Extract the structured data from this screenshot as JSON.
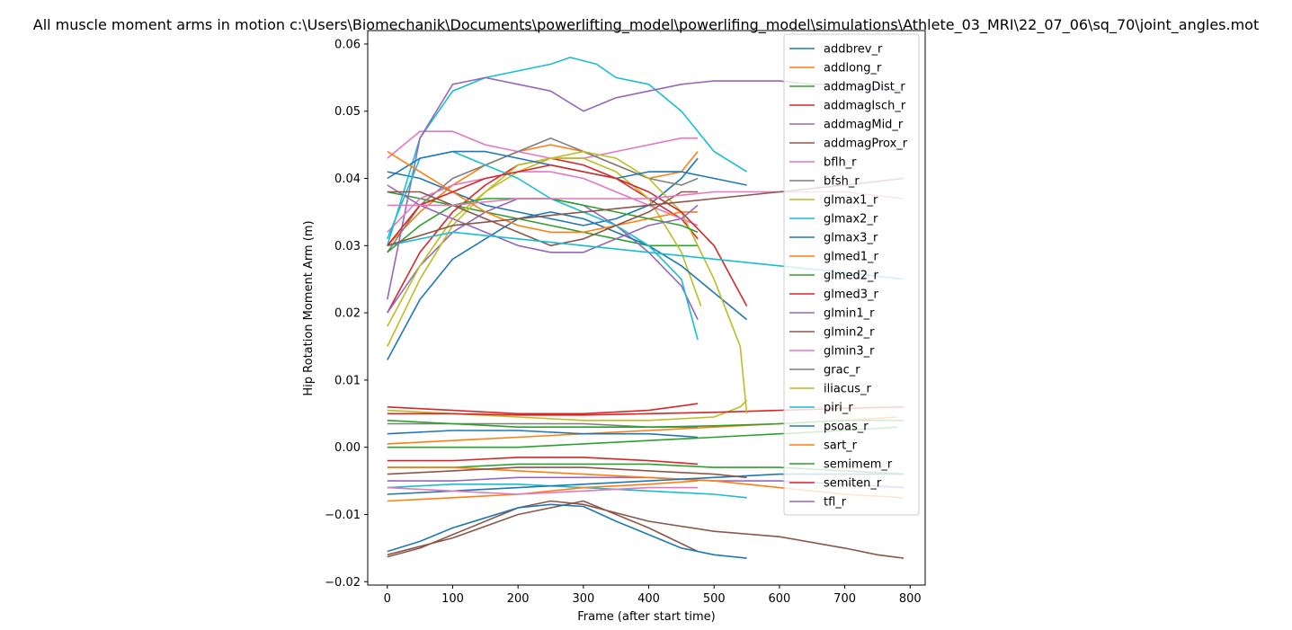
{
  "chart_data": {
    "type": "line",
    "title": "All muscle moment arms in motion c:\\Users\\Biomechanik\\Documents\\powerlifting_model\\powerlifing_model\\simulations\\Athlete_03_MRI\\22_07_06\\sq_70\\joint_angles.mot",
    "xlabel": "Frame (after start time)",
    "ylabel": "Hip Rotation Moment Arm (m)",
    "xlim": [
      -30,
      823
    ],
    "ylim": [
      -0.0205,
      0.062
    ],
    "xticks": [
      0,
      100,
      200,
      300,
      400,
      500,
      600,
      700,
      800
    ],
    "yticks": [
      -0.02,
      -0.01,
      0.0,
      0.01,
      0.02,
      0.03,
      0.04,
      0.05,
      0.06
    ],
    "ytick_labels": [
      "−0.02",
      "−0.01",
      "0.00",
      "0.01",
      "0.02",
      "0.03",
      "0.04",
      "0.05",
      "0.06"
    ],
    "grid": false,
    "legend_position": "top-right",
    "series": [
      {
        "name": "addbrev_r",
        "color": "#1f77b4",
        "x": [
          0,
          50,
          100,
          150,
          200,
          250,
          300,
          350,
          400,
          450,
          475
        ],
        "y": [
          0.041,
          0.04,
          0.038,
          0.036,
          0.035,
          0.034,
          0.033,
          0.034,
          0.036,
          0.04,
          0.043
        ]
      },
      {
        "name": "addlong_r",
        "color": "#ff7f0e",
        "x": [
          0,
          50,
          100,
          150,
          200,
          250,
          300,
          350,
          400,
          450,
          475
        ],
        "y": [
          0.03,
          0.035,
          0.039,
          0.042,
          0.044,
          0.045,
          0.044,
          0.042,
          0.04,
          0.041,
          0.044
        ]
      },
      {
        "name": "addmagDist_r",
        "color": "#2ca02c",
        "x": [
          0,
          50,
          100,
          150,
          200,
          250,
          300,
          350,
          400,
          450,
          475
        ],
        "y": [
          0.038,
          0.037,
          0.036,
          0.035,
          0.034,
          0.033,
          0.032,
          0.031,
          0.03,
          0.03,
          0.03
        ]
      },
      {
        "name": "addmagIsch_r",
        "color": "#d62728",
        "x": [
          0,
          50,
          100,
          150,
          200,
          250,
          300,
          350,
          400,
          450,
          475
        ],
        "y": [
          0.02,
          0.029,
          0.035,
          0.039,
          0.042,
          0.043,
          0.042,
          0.04,
          0.037,
          0.034,
          0.031
        ]
      },
      {
        "name": "addmagMid_r",
        "color": "#9467bd",
        "x": [
          0,
          50,
          100,
          150,
          200,
          250,
          300,
          350,
          400,
          450,
          475
        ],
        "y": [
          0.02,
          0.027,
          0.032,
          0.035,
          0.037,
          0.037,
          0.036,
          0.033,
          0.029,
          0.024,
          0.019
        ]
      },
      {
        "name": "addmagProx_r",
        "color": "#8c564b",
        "x": [
          0,
          50,
          100,
          150,
          200,
          250,
          300,
          400,
          500,
          600,
          700,
          750,
          790
        ],
        "y": [
          -0.0163,
          -0.015,
          -0.013,
          -0.011,
          -0.009,
          -0.008,
          -0.0085,
          -0.011,
          -0.0125,
          -0.0133,
          -0.015,
          -0.016,
          -0.0165
        ]
      },
      {
        "name": "bflh_r",
        "color": "#e377c2",
        "x": [
          0,
          50,
          100,
          150,
          200,
          250,
          300,
          350,
          400,
          450,
          475
        ],
        "y": [
          0.043,
          0.047,
          0.047,
          0.045,
          0.044,
          0.043,
          0.043,
          0.044,
          0.045,
          0.046,
          0.046
        ]
      },
      {
        "name": "bfsh_r",
        "color": "#7f7f7f",
        "x": [
          0,
          50,
          100,
          150,
          200,
          250,
          300,
          350,
          400,
          450,
          475
        ],
        "y": [
          0.029,
          0.036,
          0.04,
          0.042,
          0.044,
          0.046,
          0.044,
          0.042,
          0.04,
          0.039,
          0.04
        ]
      },
      {
        "name": "glmax1_r",
        "color": "#bcbd22",
        "x": [
          0,
          50,
          100,
          150,
          200,
          250,
          300,
          350,
          400,
          450,
          480
        ],
        "y": [
          0.018,
          0.027,
          0.034,
          0.038,
          0.041,
          0.043,
          0.043,
          0.041,
          0.037,
          0.029,
          0.021
        ]
      },
      {
        "name": "glmax2_r",
        "color": "#17becf",
        "x": [
          0,
          50,
          100,
          150,
          200,
          250,
          280,
          320,
          350,
          400,
          450,
          500,
          550
        ],
        "y": [
          0.03,
          0.046,
          0.053,
          0.055,
          0.056,
          0.057,
          0.058,
          0.057,
          0.055,
          0.054,
          0.05,
          0.044,
          0.041
        ]
      },
      {
        "name": "glmax3_r",
        "color": "#1f77b4",
        "x": [
          0,
          50,
          100,
          150,
          200,
          250,
          300,
          350,
          400,
          450,
          500,
          550
        ],
        "y": [
          0.013,
          0.022,
          0.028,
          0.031,
          0.034,
          0.035,
          0.034,
          0.032,
          0.03,
          0.027,
          0.023,
          0.019
        ]
      },
      {
        "name": "glmed1_r",
        "color": "#ff7f0e",
        "x": [
          0,
          100,
          200,
          300,
          400,
          500,
          600,
          700,
          780
        ],
        "y": [
          0.0005,
          0.001,
          0.0015,
          0.002,
          0.0025,
          0.003,
          0.0035,
          0.004,
          0.0045
        ]
      },
      {
        "name": "glmed2_r",
        "color": "#2ca02c",
        "x": [
          0,
          100,
          200,
          300,
          400,
          500,
          600,
          700,
          780
        ],
        "y": [
          0.0,
          0.0,
          0.0,
          0.0005,
          0.001,
          0.0015,
          0.002,
          0.0025,
          0.003
        ]
      },
      {
        "name": "glmed3_r",
        "color": "#d62728",
        "x": [
          0,
          100,
          200,
          300,
          400,
          475
        ],
        "y": [
          0.006,
          0.0055,
          0.005,
          0.005,
          0.0055,
          0.0065
        ]
      },
      {
        "name": "glmin1_r",
        "color": "#9467bd",
        "x": [
          0,
          50,
          100,
          150,
          200,
          250,
          300,
          350,
          400,
          450,
          500,
          550,
          600,
          650,
          700,
          750,
          790
        ],
        "y": [
          0.022,
          0.046,
          0.054,
          0.055,
          0.054,
          0.053,
          0.05,
          0.052,
          0.053,
          0.054,
          0.0545,
          0.0545,
          0.0545,
          0.054,
          0.054,
          0.0535,
          0.053
        ]
      },
      {
        "name": "glmin2_r",
        "color": "#8c564b",
        "x": [
          0,
          100,
          200,
          300,
          400,
          475
        ],
        "y": [
          -0.016,
          -0.0135,
          -0.01,
          -0.008,
          -0.012,
          -0.0155
        ]
      },
      {
        "name": "glmin3_r",
        "color": "#e377c2",
        "x": [
          0,
          50,
          100,
          150,
          200,
          250,
          300,
          350,
          400,
          450,
          475
        ],
        "y": [
          0.032,
          0.037,
          0.039,
          0.04,
          0.041,
          0.041,
          0.04,
          0.038,
          0.036,
          0.034,
          0.033
        ]
      },
      {
        "name": "grac_r",
        "color": "#7f7f7f",
        "x": [
          0,
          100,
          200,
          300,
          400,
          475
        ],
        "y": [
          0.0035,
          0.0035,
          0.0035,
          0.0035,
          0.003,
          0.003
        ]
      },
      {
        "name": "iliacus_r",
        "color": "#bcbd22",
        "x": [
          0,
          100,
          200,
          300,
          400,
          500,
          540,
          550
        ],
        "y": [
          0.0055,
          0.005,
          0.0045,
          0.004,
          0.004,
          0.0045,
          0.006,
          0.007
        ]
      },
      {
        "name": "piri_r",
        "color": "#17becf",
        "x": [
          0,
          100,
          200,
          300,
          400,
          500,
          550
        ],
        "y": [
          -0.006,
          -0.0055,
          -0.0055,
          -0.006,
          -0.0065,
          -0.007,
          -0.0075
        ]
      },
      {
        "name": "psoas_r",
        "color": "#1f77b4",
        "x": [
          0,
          50,
          100,
          150,
          200,
          250,
          300,
          350,
          400,
          450,
          500,
          550
        ],
        "y": [
          -0.0155,
          -0.014,
          -0.012,
          -0.0105,
          -0.009,
          -0.0085,
          -0.0088,
          -0.011,
          -0.013,
          -0.015,
          -0.016,
          -0.0165
        ]
      },
      {
        "name": "sart_r",
        "color": "#ff7f0e",
        "x": [
          0,
          100,
          200,
          300,
          400,
          475
        ],
        "y": [
          -0.008,
          -0.0075,
          -0.007,
          -0.006,
          -0.0055,
          -0.005
        ]
      },
      {
        "name": "semimem_r",
        "color": "#2ca02c",
        "x": [
          0,
          100,
          200,
          300,
          400,
          500,
          600,
          700,
          790
        ],
        "y": [
          -0.003,
          -0.003,
          -0.0025,
          -0.0025,
          -0.0025,
          -0.003,
          -0.003,
          -0.0035,
          -0.004
        ]
      },
      {
        "name": "semiten_r",
        "color": "#d62728",
        "x": [
          0,
          100,
          200,
          300,
          400,
          500,
          600,
          700,
          790
        ],
        "y": [
          0.005,
          0.005,
          0.0048,
          0.0048,
          0.005,
          0.0052,
          0.0055,
          0.0058,
          0.006
        ]
      },
      {
        "name": "tfl_r",
        "color": "#9467bd",
        "x": [
          0,
          100,
          200,
          300,
          400,
          500,
          600,
          700,
          790
        ],
        "y": [
          -0.005,
          -0.005,
          -0.0045,
          -0.0045,
          -0.0045,
          -0.005,
          -0.005,
          -0.0055,
          -0.006
        ]
      },
      {
        "color": "#bcbd22",
        "x": [
          0,
          50,
          100,
          150,
          200,
          250,
          300,
          350,
          400,
          450,
          500,
          540,
          550
        ],
        "y": [
          0.015,
          0.025,
          0.033,
          0.038,
          0.042,
          0.043,
          0.044,
          0.043,
          0.04,
          0.035,
          0.025,
          0.015,
          0.005
        ]
      },
      {
        "color": "#17becf",
        "x": [
          0,
          50,
          100,
          150,
          200,
          250,
          300,
          350,
          400,
          450,
          475
        ],
        "y": [
          0.031,
          0.043,
          0.044,
          0.042,
          0.04,
          0.037,
          0.035,
          0.033,
          0.03,
          0.025,
          0.016
        ]
      },
      {
        "color": "#1f77b4",
        "x": [
          0,
          50,
          100,
          150,
          200,
          250,
          300,
          350,
          400,
          450,
          500,
          550
        ],
        "y": [
          0.04,
          0.043,
          0.044,
          0.044,
          0.043,
          0.042,
          0.041,
          0.04,
          0.041,
          0.041,
          0.04,
          0.039
        ]
      },
      {
        "color": "#ff7f0e",
        "x": [
          0,
          50,
          100,
          150,
          200,
          250,
          300,
          350,
          400,
          450,
          475
        ],
        "y": [
          0.044,
          0.041,
          0.038,
          0.035,
          0.033,
          0.032,
          0.032,
          0.033,
          0.034,
          0.035,
          0.035
        ]
      },
      {
        "color": "#2ca02c",
        "x": [
          0,
          50,
          100,
          150,
          200,
          250,
          300,
          350,
          400,
          450,
          475
        ],
        "y": [
          0.029,
          0.033,
          0.036,
          0.037,
          0.037,
          0.037,
          0.036,
          0.035,
          0.034,
          0.033,
          0.032
        ]
      },
      {
        "color": "#d62728",
        "x": [
          0,
          50,
          100,
          150,
          200,
          250,
          300,
          350,
          400,
          450,
          500,
          550
        ],
        "y": [
          0.03,
          0.036,
          0.038,
          0.04,
          0.041,
          0.042,
          0.041,
          0.04,
          0.038,
          0.035,
          0.03,
          0.021
        ]
      },
      {
        "color": "#9467bd",
        "x": [
          0,
          50,
          100,
          150,
          200,
          250,
          300,
          350,
          400,
          450,
          475
        ],
        "y": [
          0.039,
          0.036,
          0.034,
          0.032,
          0.03,
          0.029,
          0.029,
          0.031,
          0.033,
          0.034,
          0.036
        ]
      },
      {
        "color": "#8c564b",
        "x": [
          0,
          50,
          100,
          150,
          200,
          250,
          300,
          350,
          400,
          450,
          475
        ],
        "y": [
          0.038,
          0.038,
          0.036,
          0.034,
          0.032,
          0.03,
          0.031,
          0.033,
          0.035,
          0.038,
          0.038
        ]
      },
      {
        "color": "#e377c2",
        "x": [
          0,
          100,
          200,
          300,
          400,
          500,
          600,
          700,
          790
        ],
        "y": [
          0.036,
          0.036,
          0.037,
          0.037,
          0.037,
          0.038,
          0.038,
          0.038,
          0.037
        ]
      },
      {
        "color": "#17becf",
        "x": [
          0,
          100,
          200,
          300,
          400,
          500,
          600,
          700,
          790
        ],
        "y": [
          0.03,
          0.032,
          0.031,
          0.03,
          0.029,
          0.028,
          0.027,
          0.026,
          0.025
        ]
      },
      {
        "color": "#8c564b",
        "x": [
          0,
          100,
          200,
          300,
          400,
          500,
          600,
          700,
          790
        ],
        "y": [
          0.03,
          0.033,
          0.034,
          0.035,
          0.036,
          0.037,
          0.038,
          0.039,
          0.04
        ]
      },
      {
        "color": "#ff7f0e",
        "x": [
          0,
          100,
          200,
          300,
          400,
          500,
          600,
          700,
          790
        ],
        "y": [
          -0.003,
          -0.003,
          -0.0035,
          -0.004,
          -0.0045,
          -0.005,
          -0.006,
          -0.007,
          -0.0075
        ]
      },
      {
        "color": "#1f77b4",
        "x": [
          0,
          100,
          200,
          300,
          400,
          500,
          600,
          700,
          790
        ],
        "y": [
          -0.007,
          -0.0065,
          -0.006,
          -0.0055,
          -0.005,
          -0.0045,
          -0.004,
          -0.004,
          -0.004
        ]
      },
      {
        "color": "#e377c2",
        "x": [
          0,
          100,
          200,
          300,
          400,
          475
        ],
        "y": [
          -0.006,
          -0.0065,
          -0.007,
          -0.0065,
          -0.006,
          -0.006
        ]
      },
      {
        "color": "#8c564b",
        "x": [
          0,
          100,
          200,
          300,
          400,
          500,
          550
        ],
        "y": [
          -0.004,
          -0.0035,
          -0.003,
          -0.003,
          -0.0035,
          -0.004,
          -0.0045
        ]
      },
      {
        "color": "#2ca02c",
        "x": [
          0,
          100,
          200,
          300,
          400,
          500,
          600,
          700,
          790
        ],
        "y": [
          0.004,
          0.0035,
          0.003,
          0.003,
          0.003,
          0.0032,
          0.0035,
          0.004,
          0.004
        ]
      },
      {
        "color": "#d62728",
        "x": [
          0,
          100,
          200,
          300,
          400,
          475
        ],
        "y": [
          -0.002,
          -0.002,
          -0.0015,
          -0.0015,
          -0.002,
          -0.0025
        ]
      },
      {
        "color": "#1f77b4",
        "x": [
          0,
          100,
          200,
          300,
          400,
          475
        ],
        "y": [
          0.002,
          0.0025,
          0.0025,
          0.002,
          0.002,
          0.0015
        ]
      }
    ]
  }
}
